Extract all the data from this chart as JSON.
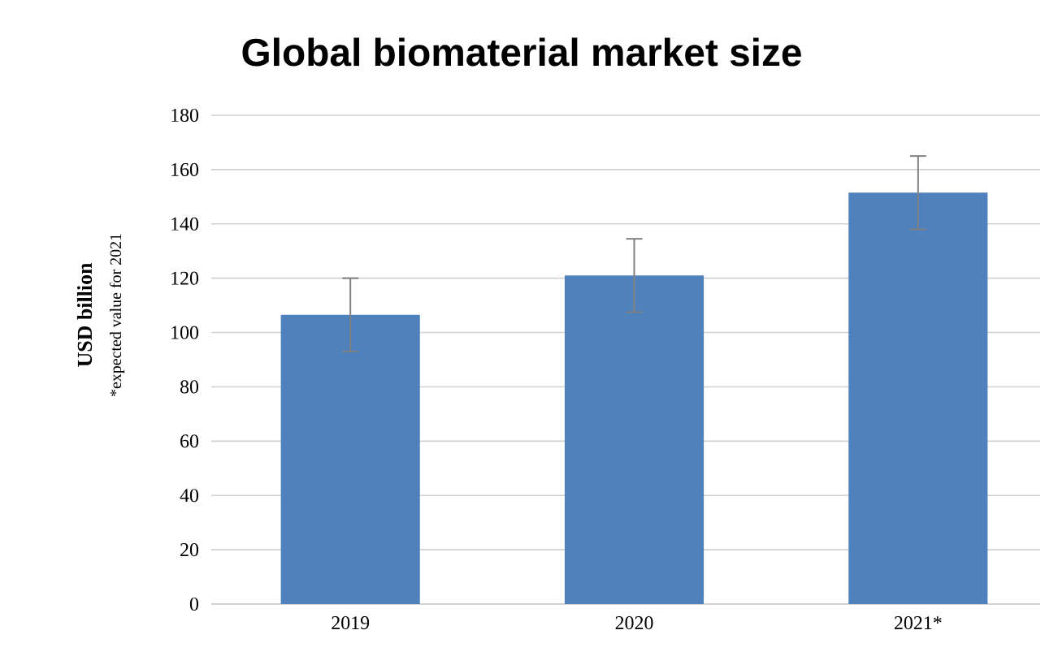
{
  "chart_data": {
    "type": "bar",
    "title": "Global biomaterial market size",
    "ylabel": "USD billion",
    "annotations": [
      "*expected value for 2021"
    ],
    "categories": [
      "2019",
      "2020",
      "2021*"
    ],
    "values": [
      106.5,
      121,
      151.5
    ],
    "errors": [
      13.5,
      13.5,
      13.5
    ],
    "color": "#4f81bd",
    "ylim": [
      0,
      180
    ],
    "yticks": [
      0,
      20,
      40,
      60,
      80,
      100,
      120,
      140,
      160,
      180
    ],
    "grid": "y"
  }
}
